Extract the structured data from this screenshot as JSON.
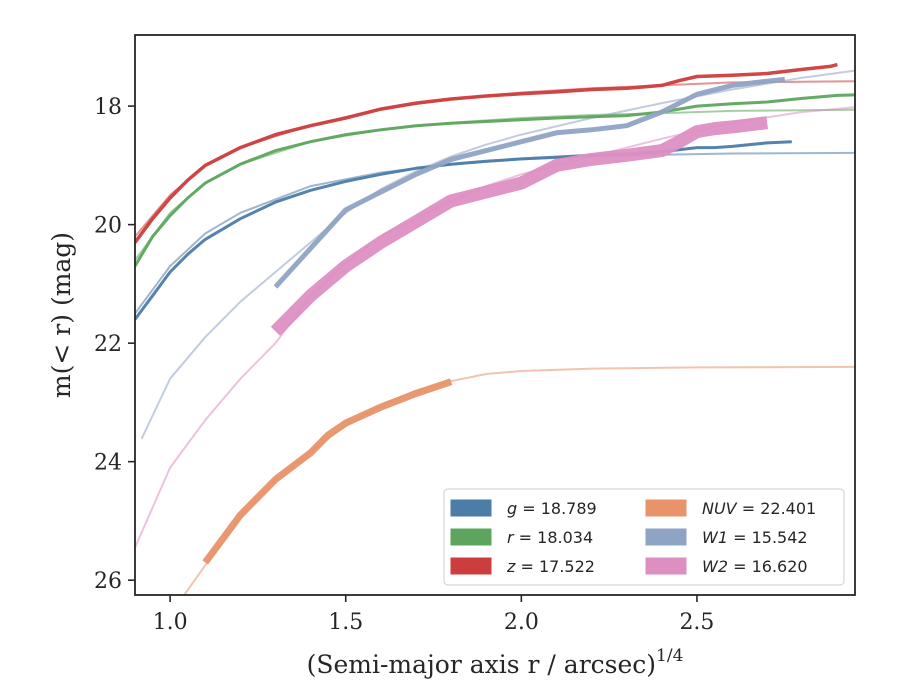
{
  "chart_data": {
    "type": "line",
    "xlabel": "(Semi-major axis r / arcsec)",
    "xlabel_sup": "1/4",
    "ylabel": "m(< r) (mag)",
    "xlim": [
      0.9,
      2.95
    ],
    "ylim": [
      26.25,
      16.8
    ],
    "y_inverted": true,
    "x_ticks": [
      1.0,
      1.5,
      2.0,
      2.5
    ],
    "x_tick_labels": [
      "1.0",
      "1.5",
      "2.0",
      "2.5"
    ],
    "y_ticks": [
      18,
      20,
      22,
      24,
      26
    ],
    "y_tick_labels": [
      "18",
      "20",
      "22",
      "24",
      "26"
    ],
    "grid": false,
    "legend_position": "bottom-right",
    "series": [
      {
        "name": "g = 18.789",
        "color": "#4c7ca8",
        "width": 3,
        "data": [
          [
            0.9,
            21.6
          ],
          [
            0.95,
            21.2
          ],
          [
            1.0,
            20.8
          ],
          [
            1.05,
            20.5
          ],
          [
            1.1,
            20.25
          ],
          [
            1.2,
            19.9
          ],
          [
            1.3,
            19.62
          ],
          [
            1.4,
            19.42
          ],
          [
            1.5,
            19.27
          ],
          [
            1.6,
            19.15
          ],
          [
            1.7,
            19.05
          ],
          [
            1.8,
            18.98
          ],
          [
            1.9,
            18.93
          ],
          [
            2.0,
            18.89
          ],
          [
            2.1,
            18.86
          ],
          [
            2.2,
            18.83
          ],
          [
            2.3,
            18.81
          ],
          [
            2.4,
            18.77
          ],
          [
            2.5,
            18.7
          ],
          [
            2.55,
            18.7
          ],
          [
            2.6,
            18.68
          ],
          [
            2.7,
            18.62
          ],
          [
            2.77,
            18.6
          ]
        ],
        "model": [
          [
            0.9,
            21.5
          ],
          [
            1.0,
            20.7
          ],
          [
            1.1,
            20.15
          ],
          [
            1.2,
            19.8
          ],
          [
            1.4,
            19.35
          ],
          [
            1.6,
            19.12
          ],
          [
            1.8,
            18.98
          ],
          [
            2.0,
            18.9
          ],
          [
            2.2,
            18.85
          ],
          [
            2.4,
            18.82
          ],
          [
            2.6,
            18.8
          ],
          [
            2.95,
            18.79
          ]
        ]
      },
      {
        "name": "r = 18.034",
        "color": "#5da55d",
        "width": 3,
        "data": [
          [
            0.9,
            20.7
          ],
          [
            0.95,
            20.2
          ],
          [
            1.0,
            19.85
          ],
          [
            1.05,
            19.55
          ],
          [
            1.1,
            19.3
          ],
          [
            1.2,
            18.98
          ],
          [
            1.3,
            18.75
          ],
          [
            1.4,
            18.6
          ],
          [
            1.5,
            18.48
          ],
          [
            1.6,
            18.4
          ],
          [
            1.7,
            18.33
          ],
          [
            1.8,
            18.29
          ],
          [
            1.9,
            18.26
          ],
          [
            2.0,
            18.23
          ],
          [
            2.1,
            18.2
          ],
          [
            2.2,
            18.18
          ],
          [
            2.3,
            18.16
          ],
          [
            2.4,
            18.1
          ],
          [
            2.5,
            18.0
          ],
          [
            2.6,
            17.96
          ],
          [
            2.7,
            17.93
          ],
          [
            2.8,
            17.87
          ],
          [
            2.9,
            17.82
          ],
          [
            2.95,
            17.81
          ]
        ],
        "model": [
          [
            0.9,
            20.6
          ],
          [
            1.0,
            19.8
          ],
          [
            1.1,
            19.3
          ],
          [
            1.2,
            18.98
          ],
          [
            1.4,
            18.6
          ],
          [
            1.6,
            18.4
          ],
          [
            1.8,
            18.28
          ],
          [
            2.0,
            18.2
          ],
          [
            2.2,
            18.15
          ],
          [
            2.4,
            18.12
          ],
          [
            2.6,
            18.08
          ],
          [
            2.95,
            18.06
          ]
        ]
      },
      {
        "name": "z = 17.522",
        "color": "#cc3d3d",
        "width": 3.5,
        "data": [
          [
            0.9,
            20.3
          ],
          [
            0.95,
            19.9
          ],
          [
            1.0,
            19.55
          ],
          [
            1.05,
            19.25
          ],
          [
            1.1,
            19.0
          ],
          [
            1.2,
            18.7
          ],
          [
            1.3,
            18.48
          ],
          [
            1.4,
            18.33
          ],
          [
            1.5,
            18.2
          ],
          [
            1.6,
            18.05
          ],
          [
            1.7,
            17.95
          ],
          [
            1.8,
            17.88
          ],
          [
            1.9,
            17.83
          ],
          [
            2.0,
            17.79
          ],
          [
            2.1,
            17.76
          ],
          [
            2.2,
            17.72
          ],
          [
            2.3,
            17.7
          ],
          [
            2.4,
            17.65
          ],
          [
            2.45,
            17.57
          ],
          [
            2.5,
            17.5
          ],
          [
            2.6,
            17.48
          ],
          [
            2.7,
            17.45
          ],
          [
            2.8,
            17.38
          ],
          [
            2.88,
            17.33
          ],
          [
            2.9,
            17.3
          ]
        ],
        "model": [
          [
            0.9,
            20.2
          ],
          [
            1.0,
            19.5
          ],
          [
            1.1,
            19.0
          ],
          [
            1.2,
            18.7
          ],
          [
            1.4,
            18.32
          ],
          [
            1.6,
            18.05
          ],
          [
            1.8,
            17.88
          ],
          [
            2.0,
            17.77
          ],
          [
            2.2,
            17.7
          ],
          [
            2.4,
            17.65
          ],
          [
            2.6,
            17.6
          ],
          [
            2.95,
            17.58
          ]
        ]
      },
      {
        "name": "NUV = 22.401",
        "color": "#e8936a",
        "width": 7,
        "data": [
          [
            1.1,
            25.7
          ],
          [
            1.2,
            24.9
          ],
          [
            1.3,
            24.3
          ],
          [
            1.4,
            23.85
          ],
          [
            1.45,
            23.55
          ],
          [
            1.5,
            23.35
          ],
          [
            1.6,
            23.08
          ],
          [
            1.7,
            22.85
          ],
          [
            1.8,
            22.65
          ]
        ],
        "model": [
          [
            1.04,
            26.25
          ],
          [
            1.1,
            25.75
          ],
          [
            1.2,
            24.95
          ],
          [
            1.3,
            24.3
          ],
          [
            1.4,
            23.82
          ],
          [
            1.5,
            23.4
          ],
          [
            1.6,
            23.05
          ],
          [
            1.7,
            22.8
          ],
          [
            1.8,
            22.64
          ],
          [
            1.9,
            22.52
          ],
          [
            2.0,
            22.47
          ],
          [
            2.2,
            22.43
          ],
          [
            2.5,
            22.41
          ],
          [
            2.95,
            22.4
          ]
        ]
      },
      {
        "name": "W1 = 15.542",
        "color": "#8fa3c4",
        "width": 5,
        "data": [
          [
            1.3,
            21.05
          ],
          [
            1.4,
            20.4
          ],
          [
            1.5,
            19.75
          ],
          [
            1.6,
            19.45
          ],
          [
            1.7,
            19.15
          ],
          [
            1.8,
            18.9
          ],
          [
            1.9,
            18.75
          ],
          [
            2.0,
            18.6
          ],
          [
            2.1,
            18.45
          ],
          [
            2.2,
            18.4
          ],
          [
            2.3,
            18.33
          ],
          [
            2.4,
            18.1
          ],
          [
            2.5,
            17.8
          ],
          [
            2.6,
            17.65
          ],
          [
            2.7,
            17.58
          ],
          [
            2.75,
            17.55
          ]
        ],
        "model": [
          [
            0.92,
            23.6
          ],
          [
            1.0,
            22.6
          ],
          [
            1.1,
            21.9
          ],
          [
            1.2,
            21.3
          ],
          [
            1.3,
            20.8
          ],
          [
            1.4,
            20.3
          ],
          [
            1.5,
            19.8
          ],
          [
            1.6,
            19.4
          ],
          [
            1.7,
            19.1
          ],
          [
            1.8,
            18.85
          ],
          [
            1.9,
            18.65
          ],
          [
            2.0,
            18.48
          ],
          [
            2.2,
            18.2
          ],
          [
            2.4,
            17.95
          ],
          [
            2.6,
            17.72
          ],
          [
            2.8,
            17.52
          ],
          [
            2.95,
            17.4
          ]
        ]
      },
      {
        "name": "W2 = 16.620",
        "color": "#dd8fc2",
        "width": 13,
        "data": [
          [
            1.3,
            21.8
          ],
          [
            1.4,
            21.2
          ],
          [
            1.5,
            20.7
          ],
          [
            1.6,
            20.3
          ],
          [
            1.7,
            19.95
          ],
          [
            1.8,
            19.6
          ],
          [
            1.9,
            19.45
          ],
          [
            2.0,
            19.3
          ],
          [
            2.1,
            19.0
          ],
          [
            2.2,
            18.9
          ],
          [
            2.3,
            18.83
          ],
          [
            2.4,
            18.75
          ],
          [
            2.45,
            18.6
          ],
          [
            2.5,
            18.43
          ],
          [
            2.55,
            18.38
          ],
          [
            2.6,
            18.35
          ],
          [
            2.7,
            18.28
          ]
        ],
        "model": [
          [
            0.9,
            25.45
          ],
          [
            1.0,
            24.1
          ],
          [
            1.1,
            23.3
          ],
          [
            1.2,
            22.6
          ],
          [
            1.3,
            22.0
          ],
          [
            1.4,
            21.2
          ],
          [
            1.5,
            20.65
          ],
          [
            1.6,
            20.2
          ],
          [
            1.7,
            19.9
          ],
          [
            1.8,
            19.6
          ],
          [
            1.9,
            19.35
          ],
          [
            2.0,
            19.15
          ],
          [
            2.2,
            18.85
          ],
          [
            2.4,
            18.55
          ],
          [
            2.6,
            18.28
          ],
          [
            2.8,
            18.1
          ],
          [
            2.95,
            18.02
          ]
        ]
      }
    ],
    "legend": {
      "columns": [
        [
          {
            "var": "g",
            "value": " = 18.789",
            "color": "#4c7ca8"
          },
          {
            "var": "r",
            "value": " = 18.034",
            "color": "#5da55d"
          },
          {
            "var": "z",
            "value": " = 17.522",
            "color": "#cc3d3d"
          }
        ],
        [
          {
            "var": "NUV",
            "value": " = 22.401",
            "color": "#e8936a"
          },
          {
            "var": "W1",
            "value": " = 15.542",
            "color": "#8fa3c4"
          },
          {
            "var": "W2",
            "value": " = 16.620",
            "color": "#dd8fc2"
          }
        ]
      ]
    }
  }
}
